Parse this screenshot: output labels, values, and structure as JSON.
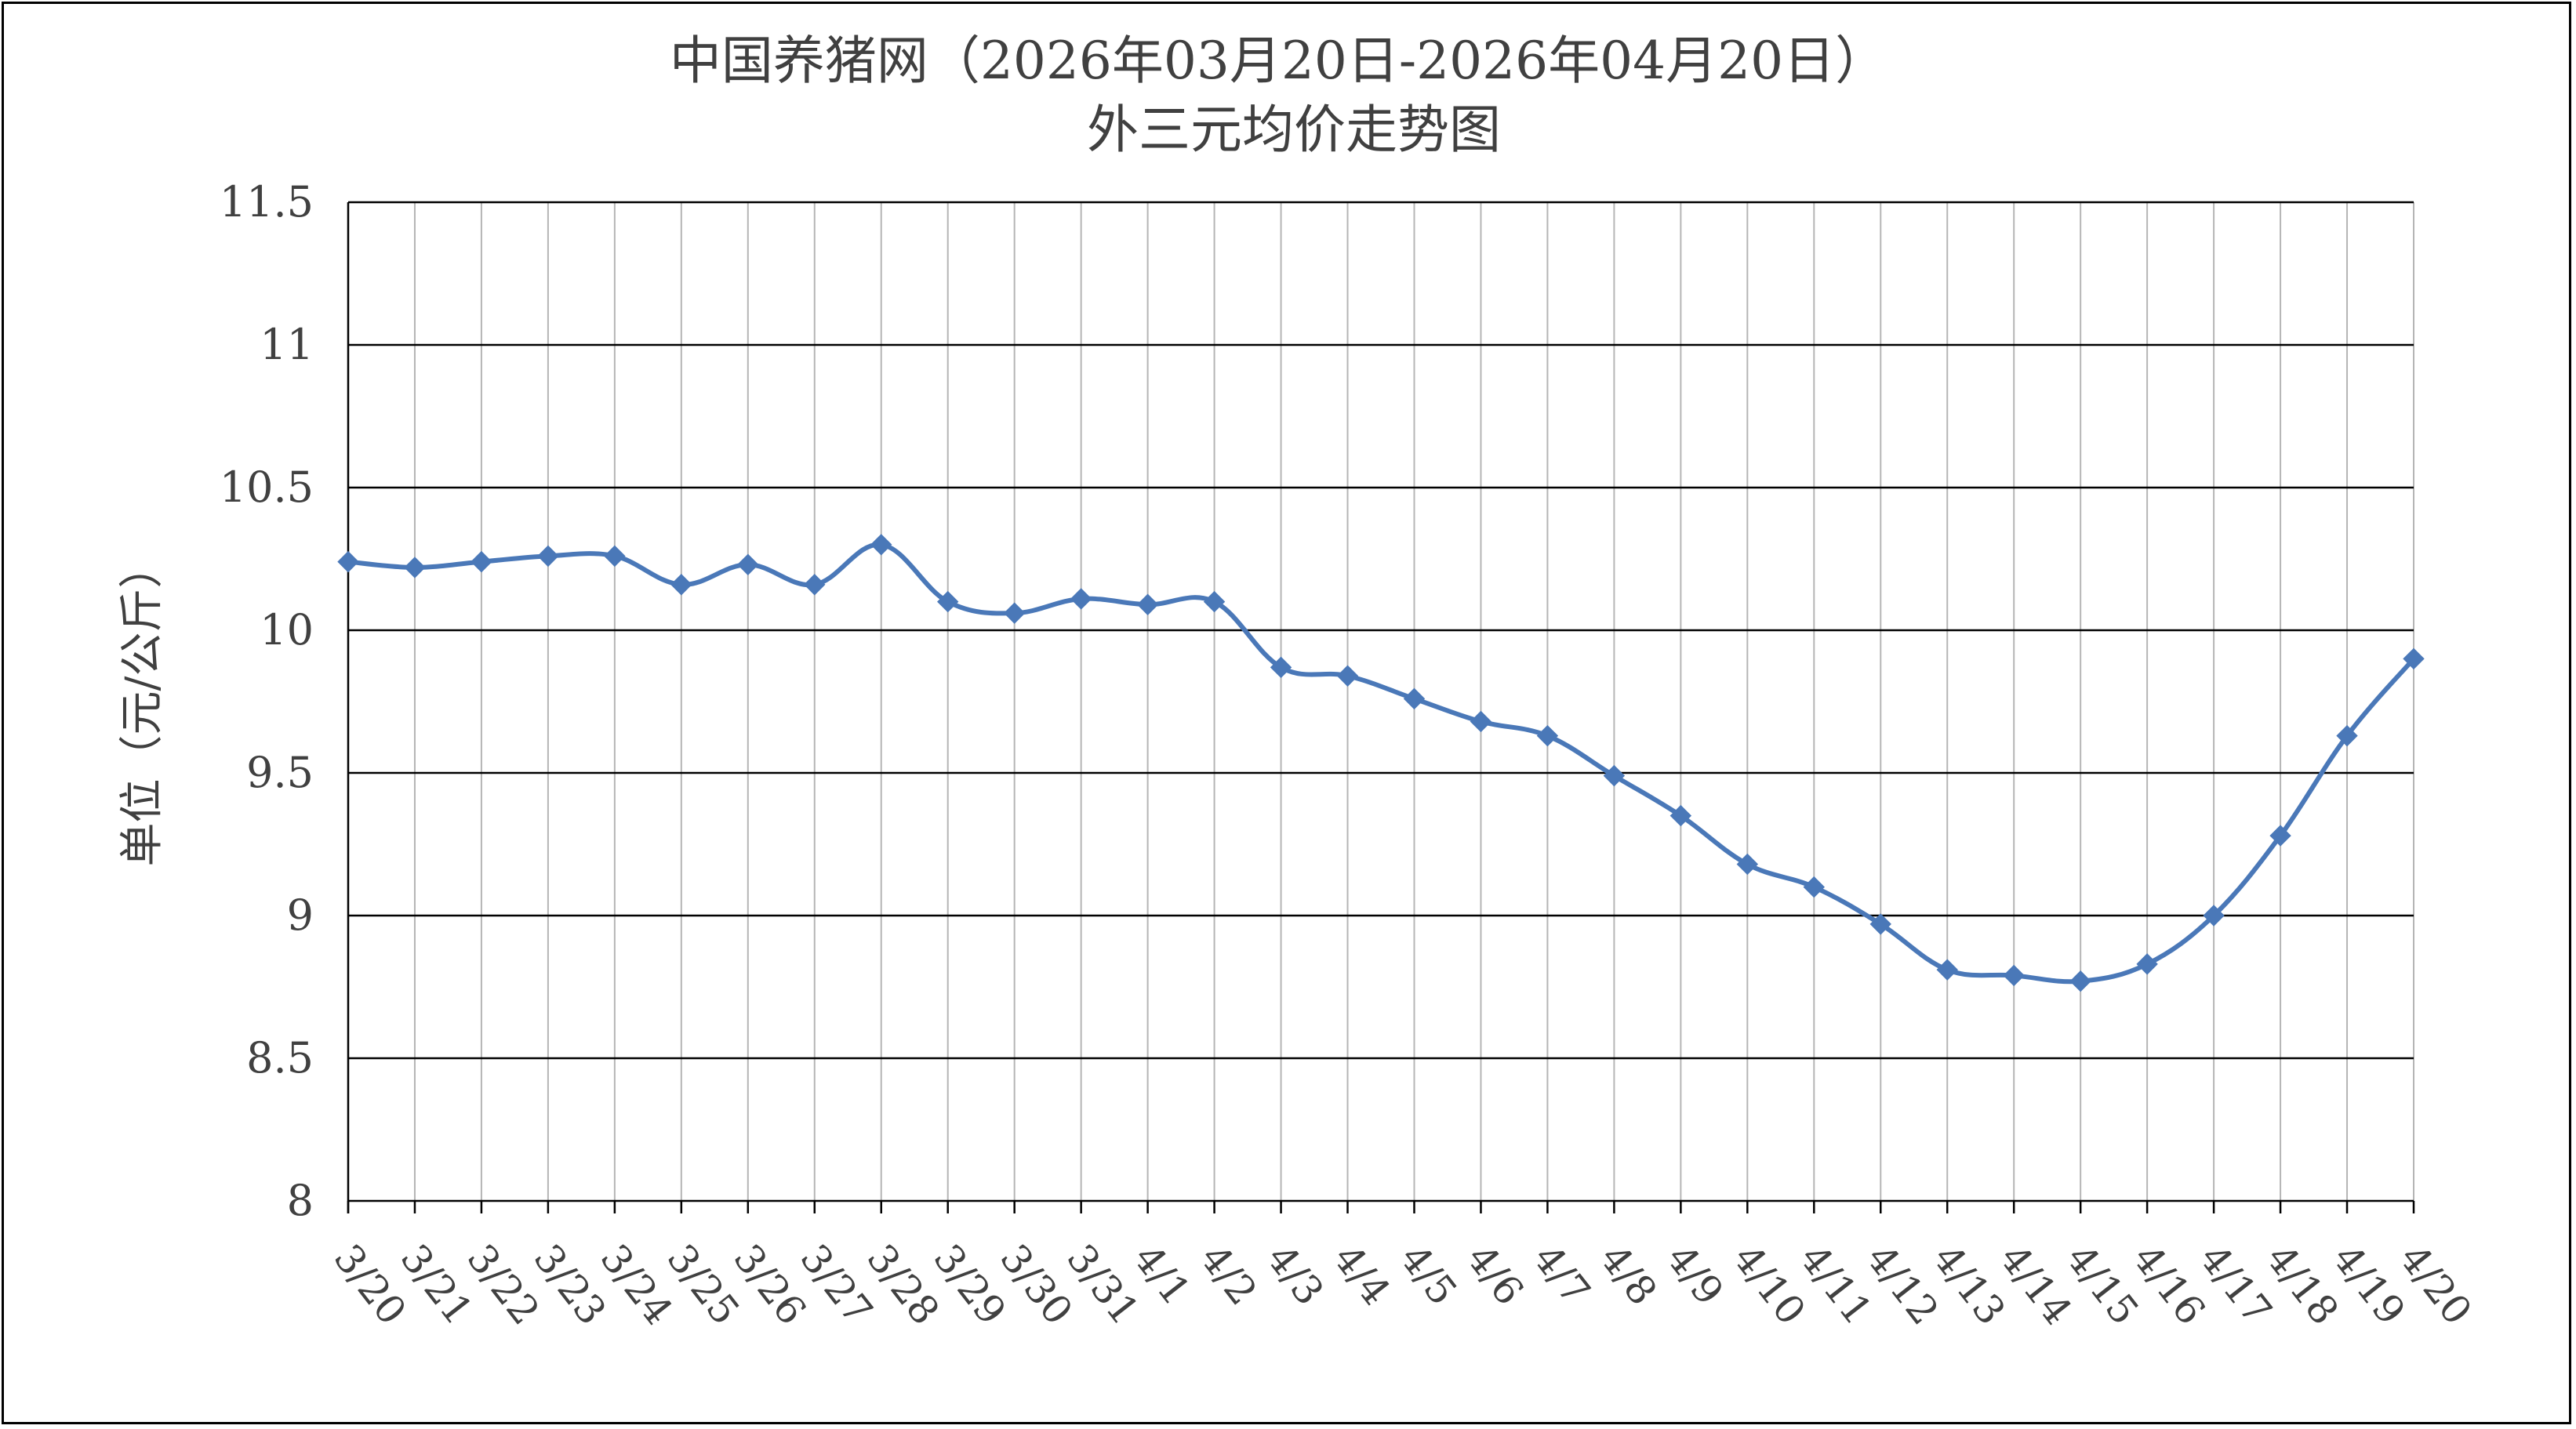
{
  "chart_data": {
    "type": "line",
    "title": "中国养猪网（2026年03月20日-2026年04月20日）",
    "subtitle": "外三元均价走势图",
    "xlabel": "",
    "ylabel": "单位（元/公斤）",
    "ylim": [
      8,
      11.5
    ],
    "yticks": [
      "11.5",
      "11",
      "10.5",
      "10",
      "9.5",
      "9",
      "8.5",
      "8"
    ],
    "grid": true,
    "categories": [
      "3/20",
      "3/21",
      "3/22",
      "3/23",
      "3/24",
      "3/25",
      "3/26",
      "3/27",
      "3/28",
      "3/29",
      "3/30",
      "3/31",
      "4/1",
      "4/2",
      "4/3",
      "4/4",
      "4/5",
      "4/6",
      "4/7",
      "4/8",
      "4/9",
      "4/10",
      "4/11",
      "4/12",
      "4/13",
      "4/14",
      "4/15",
      "4/16",
      "4/17",
      "4/18",
      "4/19",
      "4/20"
    ],
    "series": [
      {
        "color": "#4a78b8",
        "values": [
          10.24,
          10.22,
          10.24,
          10.26,
          10.26,
          10.16,
          10.23,
          10.16,
          10.3,
          10.1,
          10.06,
          10.11,
          10.09,
          10.1,
          9.87,
          9.84,
          9.76,
          9.68,
          9.63,
          9.49,
          9.35,
          9.18,
          9.1,
          8.97,
          8.81,
          8.79,
          8.77,
          8.83,
          9.0,
          9.28,
          9.63,
          9.9
        ]
      }
    ]
  }
}
